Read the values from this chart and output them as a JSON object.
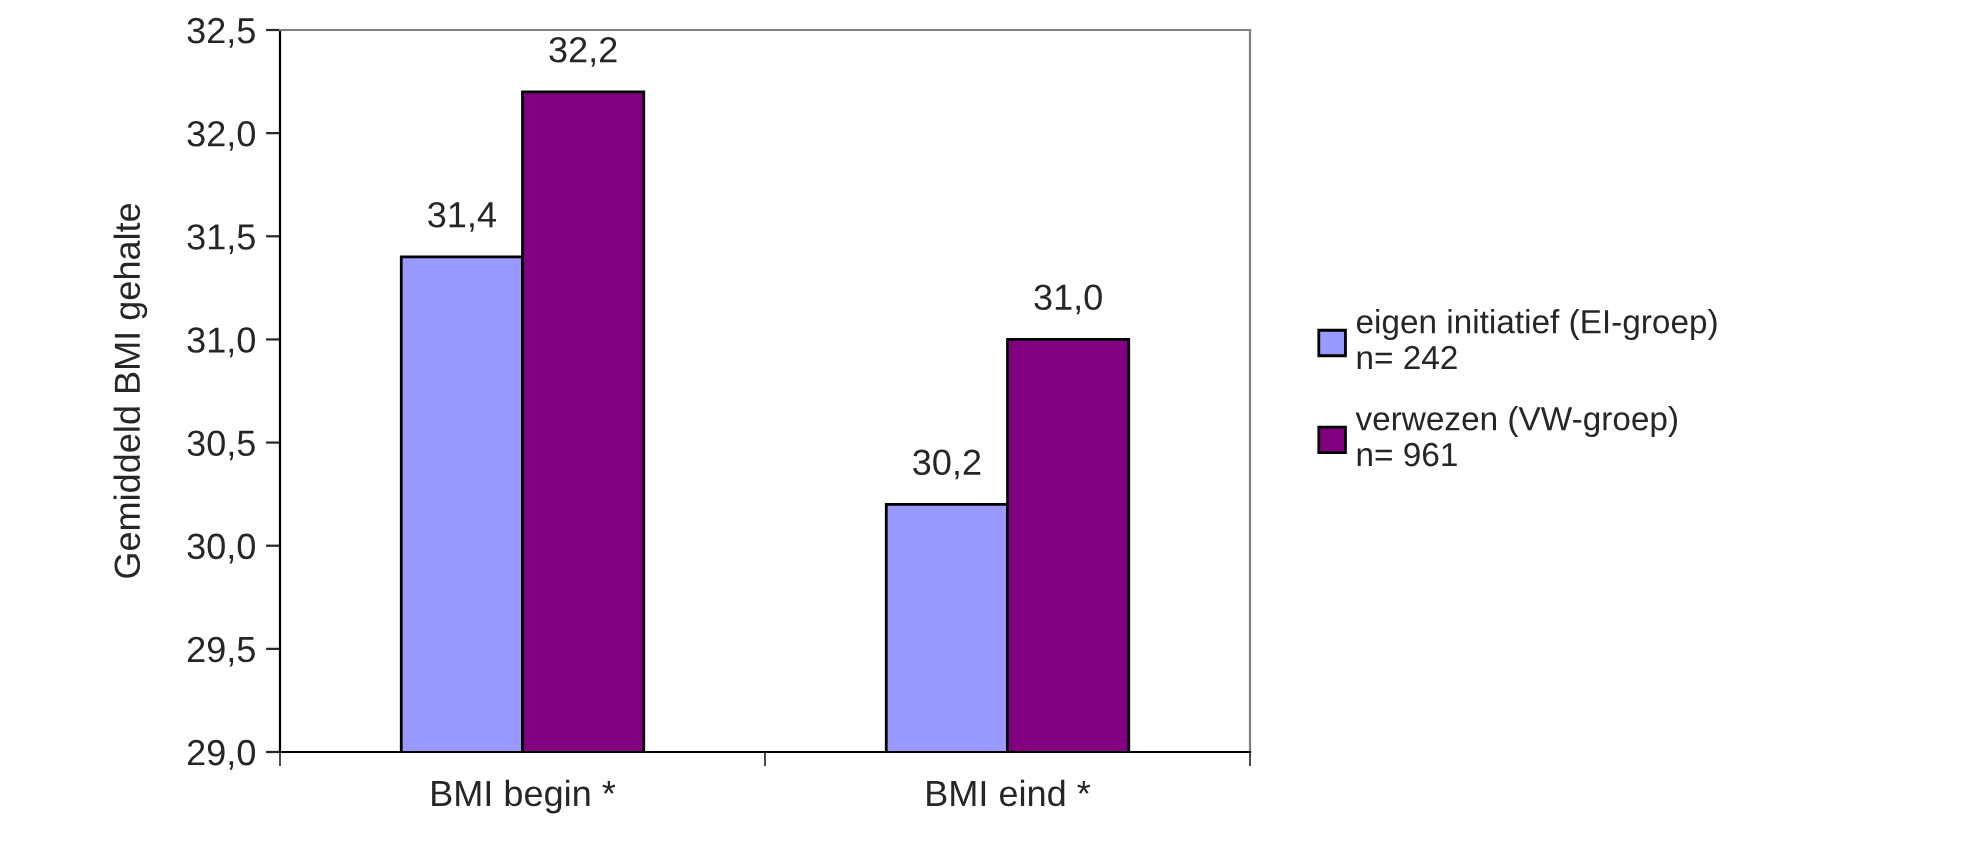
{
  "chart_data": {
    "type": "bar",
    "ylabel": "Gemiddeld BMI gehalte",
    "categories": [
      "BMI begin *",
      "BMI eind *"
    ],
    "series": [
      {
        "name": "eigen initiatief (EI-groep)\nn= 242",
        "color": "#9999ff",
        "values": [
          31.4,
          30.2
        ],
        "value_labels": [
          "31,4",
          "30,2"
        ]
      },
      {
        "name": "verwezen (VW-groep)\nn= 961",
        "color": "#800080",
        "values": [
          32.2,
          31.0
        ],
        "value_labels": [
          "32,2",
          "31,0"
        ]
      }
    ],
    "ylim": [
      29.0,
      32.5
    ],
    "yticks": [
      {
        "value": 29.0,
        "label": "29,0"
      },
      {
        "value": 29.5,
        "label": "29,5"
      },
      {
        "value": 30.0,
        "label": "30,0"
      },
      {
        "value": 30.5,
        "label": "30,5"
      },
      {
        "value": 31.0,
        "label": "31,0"
      },
      {
        "value": 31.5,
        "label": "31,5"
      },
      {
        "value": 32.0,
        "label": "32,0"
      },
      {
        "value": 32.5,
        "label": "32,5"
      }
    ],
    "grid": false,
    "legend": "right"
  }
}
